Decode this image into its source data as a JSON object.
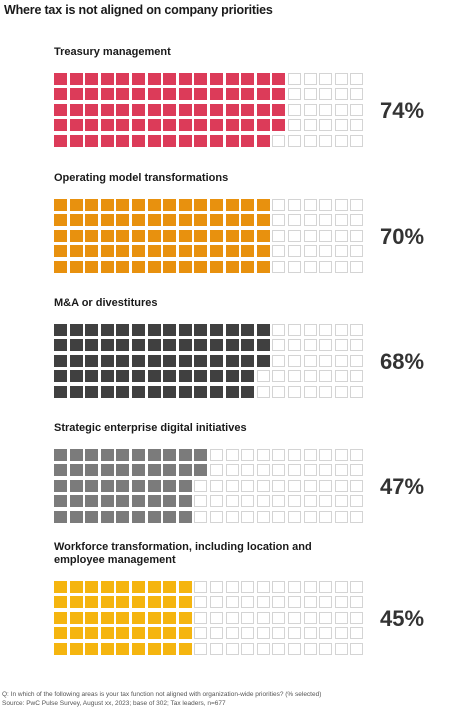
{
  "title": "Where tax is not aligned on company priorities",
  "chart_data": {
    "type": "waffle",
    "title": "Where tax is not aligned on company priorities",
    "grid": {
      "rows": 5,
      "cols": 20,
      "total": 100
    },
    "series": [
      {
        "name": "Treasury management",
        "value": 74,
        "label": "74%",
        "color": "#dc3b59"
      },
      {
        "name": "Operating model transformations",
        "value": 70,
        "label": "70%",
        "color": "#e8910e"
      },
      {
        "name": "M&A or divestitures",
        "value": 68,
        "label": "68%",
        "color": "#404040"
      },
      {
        "name": "Strategic enterprise digital initiatives",
        "value": 47,
        "label": "47%",
        "color": "#7b7b7b"
      },
      {
        "name": "Workforce transformation, including location and employee management",
        "value": 45,
        "label": "45%",
        "color": "#f5b50f"
      }
    ],
    "empty_color": "#d4d4d4"
  },
  "footnote": {
    "line1": "Q: In which of the following areas is your tax function not aligned with organization-wide priorities? (% selected)",
    "line2": "Source: PwC Pulse Survey, August xx, 2023; base of 302; Tax leaders, n=677"
  }
}
